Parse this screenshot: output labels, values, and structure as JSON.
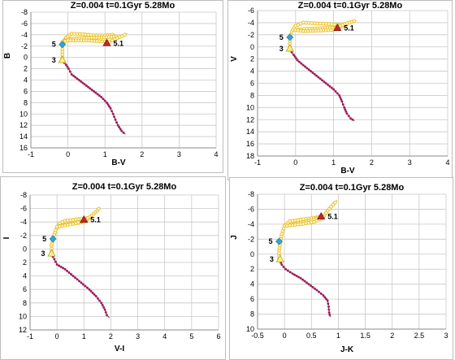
{
  "chart_data": [
    {
      "type": "scatter",
      "title": "Z=0.004  t=0.1Gyr 5.28Mo",
      "xlabel": "B-V",
      "ylabel": "B",
      "xlim": [
        -1,
        4
      ],
      "ylim": [
        16,
        -8
      ],
      "xticks": [
        -1,
        0,
        1,
        2,
        3,
        4
      ],
      "yticks": [
        -8,
        -6,
        -4,
        -2,
        0,
        2,
        4,
        6,
        8,
        10,
        12,
        14,
        16
      ],
      "grid": true,
      "series": [
        {
          "color": "#9b1f5a",
          "points": [
            [
              -0.15,
              0.6
            ],
            [
              -0.05,
              1.3
            ],
            [
              0.02,
              2.0
            ],
            [
              0.1,
              3.0
            ],
            [
              0.3,
              4.0
            ],
            [
              0.5,
              5.0
            ],
            [
              0.7,
              6.0
            ],
            [
              0.9,
              7.0
            ],
            [
              1.05,
              8.0
            ],
            [
              1.15,
              9.0
            ],
            [
              1.22,
              10.0
            ],
            [
              1.28,
              11.0
            ],
            [
              1.35,
              12.0
            ],
            [
              1.45,
              13.0
            ],
            [
              1.55,
              13.6
            ]
          ]
        },
        {
          "color": "#e8b81a",
          "points": [
            [
              -0.15,
              0.6
            ],
            [
              -0.15,
              -0.5
            ],
            [
              -0.15,
              -1.5
            ],
            [
              -0.15,
              -2.5
            ],
            [
              -0.05,
              -3.5
            ],
            [
              0.1,
              -4.2
            ],
            [
              0.4,
              -4.1
            ],
            [
              0.7,
              -3.9
            ],
            [
              1.0,
              -3.9
            ],
            [
              1.2,
              -4.0
            ],
            [
              1.3,
              -3.7
            ],
            [
              1.1,
              -3.6
            ],
            [
              0.7,
              -3.5
            ],
            [
              0.3,
              -3.4
            ],
            [
              0.0,
              -3.2
            ],
            [
              -0.15,
              -2.8
            ],
            [
              0.0,
              -3.0
            ],
            [
              0.5,
              -3.0
            ],
            [
              1.0,
              -2.8
            ],
            [
              1.05,
              -2.5
            ],
            [
              1.2,
              -3.0
            ],
            [
              1.4,
              -3.6
            ],
            [
              1.6,
              -4.2
            ]
          ]
        }
      ],
      "markers": [
        {
          "label": "5",
          "shape": "diamond",
          "color": "#29a8df",
          "x": -0.15,
          "y": -2.3
        },
        {
          "label": "3",
          "shape": "triangle",
          "color": "#fff27a",
          "x": -0.15,
          "y": 0.5
        },
        {
          "label": "5.1",
          "shape": "triangle",
          "color": "#c1272d",
          "x": 1.05,
          "y": -2.5
        }
      ]
    },
    {
      "type": "scatter",
      "title": "Z=0.004  t=0.1Gyr 5.28Mo",
      "xlabel": "B-V",
      "ylabel": "V",
      "xlim": [
        -1,
        4
      ],
      "ylim": [
        18,
        -6
      ],
      "xticks": [
        -1,
        0,
        1,
        2,
        3,
        4
      ],
      "yticks": [
        -6,
        -4,
        -2,
        0,
        2,
        4,
        6,
        8,
        10,
        12,
        14,
        16,
        18
      ],
      "grid": true,
      "series": [
        {
          "color": "#9b1f5a",
          "points": [
            [
              -0.15,
              0.5
            ],
            [
              -0.05,
              1.3
            ],
            [
              0.05,
              2.2
            ],
            [
              0.2,
              3.0
            ],
            [
              0.4,
              4.0
            ],
            [
              0.6,
              5.0
            ],
            [
              0.8,
              6.0
            ],
            [
              1.0,
              7.0
            ],
            [
              1.15,
              8.0
            ],
            [
              1.22,
              9.0
            ],
            [
              1.28,
              10.0
            ],
            [
              1.35,
              11.0
            ],
            [
              1.45,
              11.8
            ],
            [
              1.55,
              12.2
            ]
          ]
        },
        {
          "color": "#e8b81a",
          "points": [
            [
              -0.15,
              0.5
            ],
            [
              -0.15,
              -0.5
            ],
            [
              -0.15,
              -1.5
            ],
            [
              -0.1,
              -2.5
            ],
            [
              0.0,
              -3.5
            ],
            [
              0.2,
              -4.0
            ],
            [
              0.5,
              -3.9
            ],
            [
              0.8,
              -3.8
            ],
            [
              1.1,
              -3.7
            ],
            [
              1.3,
              -3.5
            ],
            [
              1.1,
              -3.2
            ],
            [
              0.7,
              -3.1
            ],
            [
              0.3,
              -3.0
            ],
            [
              0.0,
              -2.8
            ],
            [
              0.2,
              -2.6
            ],
            [
              0.6,
              -2.7
            ],
            [
              1.0,
              -2.8
            ],
            [
              1.05,
              -3.1
            ],
            [
              1.3,
              -3.8
            ],
            [
              1.6,
              -4.4
            ]
          ]
        }
      ],
      "markers": [
        {
          "label": "5",
          "shape": "diamond",
          "color": "#29a8df",
          "x": -0.15,
          "y": -1.6
        },
        {
          "label": "3",
          "shape": "triangle",
          "color": "#fff27a",
          "x": -0.15,
          "y": 0.3
        },
        {
          "label": "5.1",
          "shape": "triangle",
          "color": "#c1272d",
          "x": 1.1,
          "y": -3.1
        }
      ]
    },
    {
      "type": "scatter",
      "title": "Z=0.004  t=0.1Gyr 5.28Mo",
      "xlabel": "V-I",
      "ylabel": "I",
      "xlim": [
        -1,
        6
      ],
      "ylim": [
        12,
        -8
      ],
      "xticks": [
        -1,
        0,
        1,
        2,
        3,
        4,
        5,
        6
      ],
      "yticks": [
        -8,
        -6,
        -4,
        -2,
        0,
        2,
        4,
        6,
        8,
        10,
        12
      ],
      "grid": true,
      "series": [
        {
          "color": "#9b1f5a",
          "points": [
            [
              -0.2,
              0.8
            ],
            [
              -0.1,
              1.5
            ],
            [
              0.0,
              2.3
            ],
            [
              0.3,
              3.0
            ],
            [
              0.6,
              4.0
            ],
            [
              0.9,
              5.0
            ],
            [
              1.2,
              6.0
            ],
            [
              1.45,
              7.0
            ],
            [
              1.65,
              8.0
            ],
            [
              1.78,
              9.0
            ],
            [
              1.85,
              9.8
            ],
            [
              1.95,
              10.2
            ]
          ]
        },
        {
          "color": "#e8b81a",
          "points": [
            [
              -0.2,
              0.8
            ],
            [
              -0.2,
              -0.5
            ],
            [
              -0.15,
              -1.5
            ],
            [
              -0.05,
              -2.8
            ],
            [
              0.1,
              -3.8
            ],
            [
              0.3,
              -4.2
            ],
            [
              0.6,
              -4.3
            ],
            [
              0.9,
              -4.5
            ],
            [
              1.2,
              -4.6
            ],
            [
              1.0,
              -4.0
            ],
            [
              0.7,
              -3.8
            ],
            [
              0.3,
              -3.6
            ],
            [
              0.0,
              -3.3
            ],
            [
              0.3,
              -3.5
            ],
            [
              0.7,
              -3.8
            ],
            [
              1.0,
              -4.2
            ],
            [
              1.3,
              -5.0
            ],
            [
              1.5,
              -5.7
            ],
            [
              1.6,
              -6.2
            ]
          ]
        }
      ],
      "markers": [
        {
          "label": "5",
          "shape": "diamond",
          "color": "#29a8df",
          "x": -0.15,
          "y": -1.5
        },
        {
          "label": "3",
          "shape": "triangle",
          "color": "#fff27a",
          "x": -0.2,
          "y": 0.7
        },
        {
          "label": "5.1",
          "shape": "triangle",
          "color": "#c1272d",
          "x": 1.0,
          "y": -4.3
        }
      ]
    },
    {
      "type": "scatter",
      "title": "Z=0.004  t=0.1Gyr 5.28Mo",
      "xlabel": "J-K",
      "ylabel": "J",
      "xlim": [
        -0.5,
        3
      ],
      "ylim": [
        10,
        -8
      ],
      "xticks": [
        -0.5,
        0,
        0.5,
        1,
        1.5,
        2,
        2.5,
        3
      ],
      "yticks": [
        -8,
        -6,
        -4,
        -2,
        0,
        2,
        4,
        6,
        8,
        10
      ],
      "grid": true,
      "series": [
        {
          "color": "#9b1f5a",
          "points": [
            [
              -0.1,
              0.6
            ],
            [
              -0.05,
              1.4
            ],
            [
              0.02,
              2.0
            ],
            [
              0.15,
              2.6
            ],
            [
              0.3,
              3.2
            ],
            [
              0.45,
              4.0
            ],
            [
              0.6,
              4.8
            ],
            [
              0.72,
              5.5
            ],
            [
              0.8,
              6.2
            ],
            [
              0.82,
              7.0
            ],
            [
              0.83,
              7.8
            ],
            [
              0.85,
              8.4
            ]
          ]
        },
        {
          "color": "#e8b81a",
          "points": [
            [
              -0.1,
              0.6
            ],
            [
              -0.1,
              -0.5
            ],
            [
              -0.08,
              -1.5
            ],
            [
              -0.05,
              -2.7
            ],
            [
              0.0,
              -3.8
            ],
            [
              0.1,
              -4.4
            ],
            [
              0.3,
              -4.6
            ],
            [
              0.5,
              -4.8
            ],
            [
              0.68,
              -5.0
            ],
            [
              0.5,
              -4.5
            ],
            [
              0.3,
              -4.2
            ],
            [
              0.05,
              -3.8
            ],
            [
              0.3,
              -4.0
            ],
            [
              0.55,
              -4.3
            ],
            [
              0.7,
              -4.8
            ],
            [
              0.8,
              -5.8
            ],
            [
              0.9,
              -6.6
            ],
            [
              0.98,
              -7.2
            ]
          ]
        }
      ],
      "markers": [
        {
          "label": "5",
          "shape": "diamond",
          "color": "#29a8df",
          "x": -0.1,
          "y": -1.7
        },
        {
          "label": "3",
          "shape": "triangle",
          "color": "#fff27a",
          "x": -0.08,
          "y": 0.7
        },
        {
          "label": "5.1",
          "shape": "triangle",
          "color": "#c1272d",
          "x": 0.68,
          "y": -5.0
        }
      ]
    }
  ]
}
